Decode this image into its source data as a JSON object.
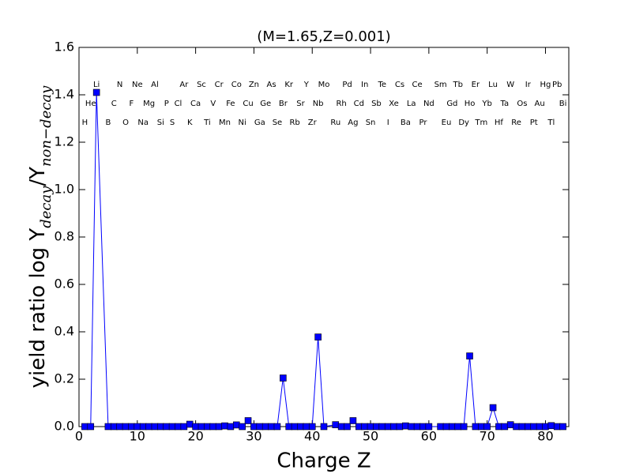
{
  "chart_data": {
    "type": "line",
    "title": "(M=1.65,Z=0.001)",
    "xlabel": "Charge Z",
    "ylabel_parts": [
      {
        "text": "yield ratio log Y"
      },
      {
        "text": "decay",
        "sub": true
      },
      {
        "text": "/Y"
      },
      {
        "text": "non−decay",
        "sub": true
      }
    ],
    "xlim": [
      0,
      84
    ],
    "ylim": [
      0,
      1.6
    ],
    "xticks": [
      0,
      10,
      20,
      30,
      40,
      50,
      60,
      70,
      80
    ],
    "yticks": [
      {
        "value": 0,
        "label": "0.0"
      },
      0.2,
      0.4,
      0.6,
      0.8,
      {
        "value": 1,
        "label": "1.0"
      },
      1.2,
      1.4,
      1.6
    ],
    "color": "#0000ff",
    "marker": "square",
    "x": [
      1,
      2,
      3,
      5,
      6,
      7,
      8,
      9,
      10,
      11,
      12,
      13,
      14,
      15,
      16,
      17,
      18,
      19,
      20,
      21,
      22,
      23,
      24,
      25,
      26,
      27,
      28,
      29,
      30,
      31,
      32,
      33,
      34,
      35,
      36,
      37,
      38,
      39,
      40,
      41,
      42,
      44,
      45,
      46,
      47,
      48,
      49,
      50,
      51,
      52,
      53,
      54,
      55,
      56,
      57,
      58,
      59,
      60,
      62,
      63,
      64,
      65,
      66,
      67,
      68,
      69,
      70,
      71,
      72,
      73,
      74,
      75,
      76,
      77,
      78,
      79,
      80,
      81,
      82,
      83
    ],
    "values": [
      0,
      0,
      1.41,
      0,
      0,
      0,
      0,
      0,
      0,
      0,
      0,
      0,
      0,
      0,
      0,
      0,
      0,
      0.01,
      0,
      0,
      0,
      0,
      0,
      0.003,
      0,
      0.007,
      0,
      0.025,
      0,
      0,
      0,
      0,
      0,
      0.205,
      0,
      0,
      0,
      0,
      0,
      0.378,
      0,
      0.008,
      0,
      0,
      0.025,
      0,
      0,
      0,
      0,
      0,
      0,
      0,
      0,
      0.003,
      0,
      0,
      0,
      0,
      0,
      0,
      0,
      0,
      0,
      0.298,
      0,
      0,
      0,
      0.08,
      0,
      0,
      0.008,
      0,
      0,
      0,
      0,
      0,
      0,
      0.004,
      0,
      0
    ],
    "element_rows": [
      [
        {
          "text": "Li",
          "x": 3
        },
        {
          "text": "N",
          "x": 7
        },
        {
          "text": "Ne",
          "x": 10
        },
        {
          "text": "Al",
          "x": 13
        },
        {
          "text": "Ar",
          "x": 18
        },
        {
          "text": "Sc",
          "x": 21
        },
        {
          "text": "Cr",
          "x": 24
        },
        {
          "text": "Co",
          "x": 27
        },
        {
          "text": "Zn",
          "x": 30
        },
        {
          "text": "As",
          "x": 33
        },
        {
          "text": "Kr",
          "x": 36
        },
        {
          "text": "Y",
          "x": 39
        },
        {
          "text": "Mo",
          "x": 42
        },
        {
          "text": "Pd",
          "x": 46
        },
        {
          "text": "In",
          "x": 49
        },
        {
          "text": "Te",
          "x": 52
        },
        {
          "text": "Cs",
          "x": 55
        },
        {
          "text": "Ce",
          "x": 58
        },
        {
          "text": "Sm",
          "x": 62
        },
        {
          "text": "Tb",
          "x": 65
        },
        {
          "text": "Er",
          "x": 68
        },
        {
          "text": "Lu",
          "x": 71
        },
        {
          "text": "W",
          "x": 74
        },
        {
          "text": "Ir",
          "x": 77
        },
        {
          "text": "Hg",
          "x": 80
        },
        {
          "text": "Pb",
          "x": 82
        }
      ],
      [
        {
          "text": "He",
          "x": 2
        },
        {
          "text": "C",
          "x": 6
        },
        {
          "text": "F",
          "x": 9
        },
        {
          "text": "Mg",
          "x": 12
        },
        {
          "text": "P",
          "x": 15
        },
        {
          "text": "Cl",
          "x": 17
        },
        {
          "text": "Ca",
          "x": 20
        },
        {
          "text": "V",
          "x": 23
        },
        {
          "text": "Fe",
          "x": 26
        },
        {
          "text": "Cu",
          "x": 29
        },
        {
          "text": "Ge",
          "x": 32
        },
        {
          "text": "Br",
          "x": 35
        },
        {
          "text": "Sr",
          "x": 38
        },
        {
          "text": "Nb",
          "x": 41
        },
        {
          "text": "Rh",
          "x": 45
        },
        {
          "text": "Cd",
          "x": 48
        },
        {
          "text": "Sb",
          "x": 51
        },
        {
          "text": "Xe",
          "x": 54
        },
        {
          "text": "La",
          "x": 57
        },
        {
          "text": "Nd",
          "x": 60
        },
        {
          "text": "Gd",
          "x": 64
        },
        {
          "text": "Ho",
          "x": 67
        },
        {
          "text": "Yb",
          "x": 70
        },
        {
          "text": "Ta",
          "x": 73
        },
        {
          "text": "Os",
          "x": 76
        },
        {
          "text": "Au",
          "x": 79
        },
        {
          "text": "Bi",
          "x": 83
        }
      ],
      [
        {
          "text": "H",
          "x": 1
        },
        {
          "text": "B",
          "x": 5
        },
        {
          "text": "O",
          "x": 8
        },
        {
          "text": "Na",
          "x": 11
        },
        {
          "text": "Si",
          "x": 14
        },
        {
          "text": "S",
          "x": 16
        },
        {
          "text": "K",
          "x": 19
        },
        {
          "text": "Ti",
          "x": 22
        },
        {
          "text": "Mn",
          "x": 25
        },
        {
          "text": "Ni",
          "x": 28
        },
        {
          "text": "Ga",
          "x": 31
        },
        {
          "text": "Se",
          "x": 34
        },
        {
          "text": "Rb",
          "x": 37
        },
        {
          "text": "Zr",
          "x": 40
        },
        {
          "text": "Ru",
          "x": 44
        },
        {
          "text": "Ag",
          "x": 47
        },
        {
          "text": "Sn",
          "x": 50
        },
        {
          "text": "I",
          "x": 53
        },
        {
          "text": "Ba",
          "x": 56
        },
        {
          "text": "Pr",
          "x": 59
        },
        {
          "text": "Eu",
          "x": 63
        },
        {
          "text": "Dy",
          "x": 66
        },
        {
          "text": "Tm",
          "x": 69
        },
        {
          "text": "Hf",
          "x": 72
        },
        {
          "text": "Re",
          "x": 75
        },
        {
          "text": "Pt",
          "x": 78
        },
        {
          "text": "Tl",
          "x": 81
        }
      ]
    ]
  }
}
